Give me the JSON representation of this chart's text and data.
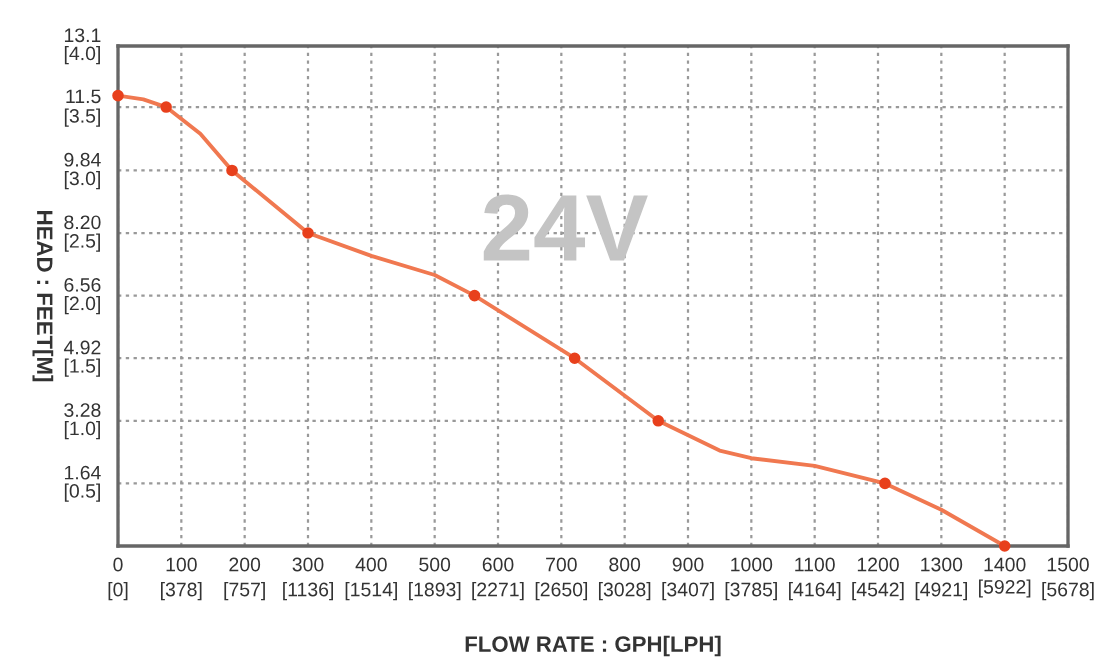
{
  "chart_data": {
    "type": "line",
    "xlabel": "FLOW RATE : GPH[LPH]",
    "ylabel": "HEAD : FEET[M]",
    "annotations": [
      "24V"
    ],
    "series": [
      {
        "color": "#f07850",
        "x": [
          0,
          40,
          76,
          130,
          180,
          300,
          400,
          500,
          563,
          721,
          853,
          950,
          1000,
          1100,
          1211,
          1300,
          1400
        ],
        "values": [
          11.8,
          11.7,
          11.5,
          10.8,
          9.84,
          8.2,
          7.6,
          7.1,
          6.56,
          4.92,
          3.28,
          2.5,
          2.3,
          2.1,
          1.64,
          0.95,
          0
        ]
      },
      {
        "type": "scatter",
        "color": "#e8401c",
        "marker": "circle",
        "x": [
          0,
          76,
          180,
          300,
          563,
          721,
          853,
          1211,
          1400
        ],
        "values": [
          11.8,
          11.5,
          9.84,
          8.2,
          6.56,
          4.92,
          3.28,
          1.64,
          0
        ]
      }
    ],
    "xlim": [
      0,
      1500
    ],
    "ylim": [
      0,
      13.1
    ],
    "xticks": [
      0,
      100,
      200,
      300,
      400,
      500,
      600,
      700,
      800,
      900,
      1000,
      1100,
      1200,
      1300,
      {
        "value": 1400,
        "label": "1400\n[5922]"
      },
      1500
    ],
    "yticks": [
      1.64,
      3.28,
      4.92,
      6.56,
      {
        "value": 8.2,
        "label": "8.20"
      },
      9.84,
      11.5,
      13.1
    ],
    "x2lim": [
      0,
      5678
    ],
    "x2ticks": [
      {
        "value": 0,
        "label": "[0]"
      },
      {
        "value": 378,
        "label": "[378]"
      },
      {
        "value": 757,
        "label": "[757]"
      },
      {
        "value": 1136,
        "label": "[1136]"
      },
      {
        "value": 1514,
        "label": "[1514]"
      },
      {
        "value": 1893,
        "label": "[1893]"
      },
      {
        "value": 2271,
        "label": "[2271]"
      },
      {
        "value": 2650,
        "label": "[2650]"
      },
      {
        "value": 3028,
        "label": "[3028]"
      },
      {
        "value": 3407,
        "label": "[3407]"
      },
      {
        "value": 3785,
        "label": "[3785]"
      },
      {
        "value": 4164,
        "label": "[4164]"
      },
      {
        "value": 4542,
        "label": "[4542]"
      },
      {
        "value": 4921,
        "label": "[4921]"
      },
      {
        "value": 5678,
        "label": "[5678]"
      }
    ],
    "y2lim": [
      0,
      4.0
    ],
    "y2ticks": [
      {
        "value": 0.5,
        "label": "[0.5]"
      },
      {
        "value": 1.0,
        "label": "[1.0]"
      },
      {
        "value": 1.5,
        "label": "[1.5]"
      },
      {
        "value": 2.0,
        "label": "[2.0]"
      },
      {
        "value": 2.5,
        "label": "[2.5]"
      },
      {
        "value": 3.0,
        "label": "[3.0]"
      },
      {
        "value": 3.5,
        "label": "[3.5]"
      },
      {
        "value": 4.0,
        "label": "[4.0]"
      }
    ],
    "grid": true,
    "line_style": "solid"
  }
}
